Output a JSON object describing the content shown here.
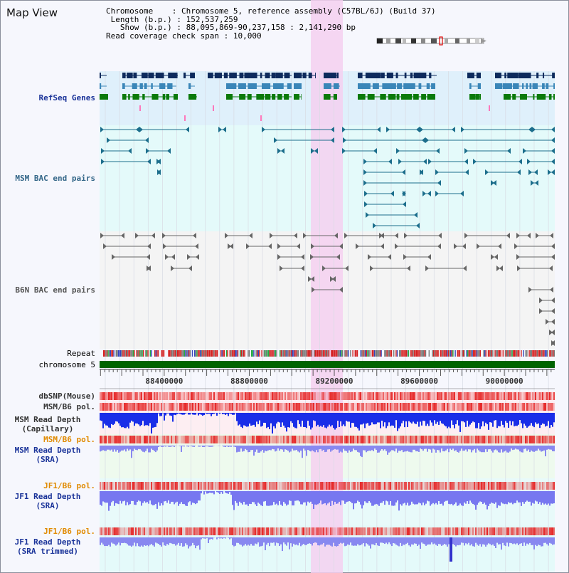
{
  "title": "Map View",
  "info": {
    "chromosome_key": "Chromosome",
    "chromosome_val": "Chromosome 5, reference assembly (C57BL/6J) (Build 37)",
    "length_key": "Length (b.p.)",
    "length_val": "152,537,259",
    "show_key": "Show (b.p.)",
    "show_val": "88,095,869-90,237,158 : 2,141,290 bp",
    "coverage_key": "Read coverage check span",
    "coverage_val": "10,000"
  },
  "tracks": {
    "refseq": "RefSeq Genes",
    "msm_bac": "MSM BAC end pairs",
    "b6n_bac": "B6N BAC end pairs",
    "repeat": "Repeat",
    "chromosome": "chromosome 5",
    "dbsnp": "dbSNP(Mouse)",
    "msm_pol1": "MSM/B6 pol.",
    "msm_depth_cap_1": "MSM Read Depth",
    "msm_depth_cap_2": "(Capillary)",
    "msm_pol2": "MSM/B6 pol.",
    "msm_depth_sra_1": "MSM Read Depth",
    "msm_depth_sra_2": "(SRA)",
    "jf1_pol1": "JF1/B6 pol.",
    "jf1_depth_sra_1": "JF1 Read Depth",
    "jf1_depth_sra_2": "(SRA)",
    "jf1_pol2": "JF1/B6 pol.",
    "jf1_depth_trim_1": "JF1 Read Depth",
    "jf1_depth_trim_2": "(SRA trimmed)"
  },
  "axis": {
    "ticks": [
      "88400000",
      "88800000",
      "89200000",
      "89600000",
      "90000000"
    ],
    "start": 88095869,
    "end": 90237158
  },
  "colors": {
    "refseq_label": "#1a3399",
    "bac_label": "#336688",
    "b6n_label": "#555555",
    "pol_label": "#e08a00",
    "depth_label": "#1a3399",
    "highlight": "#f5d0f0",
    "chromosome_bar": "#006400"
  }
}
